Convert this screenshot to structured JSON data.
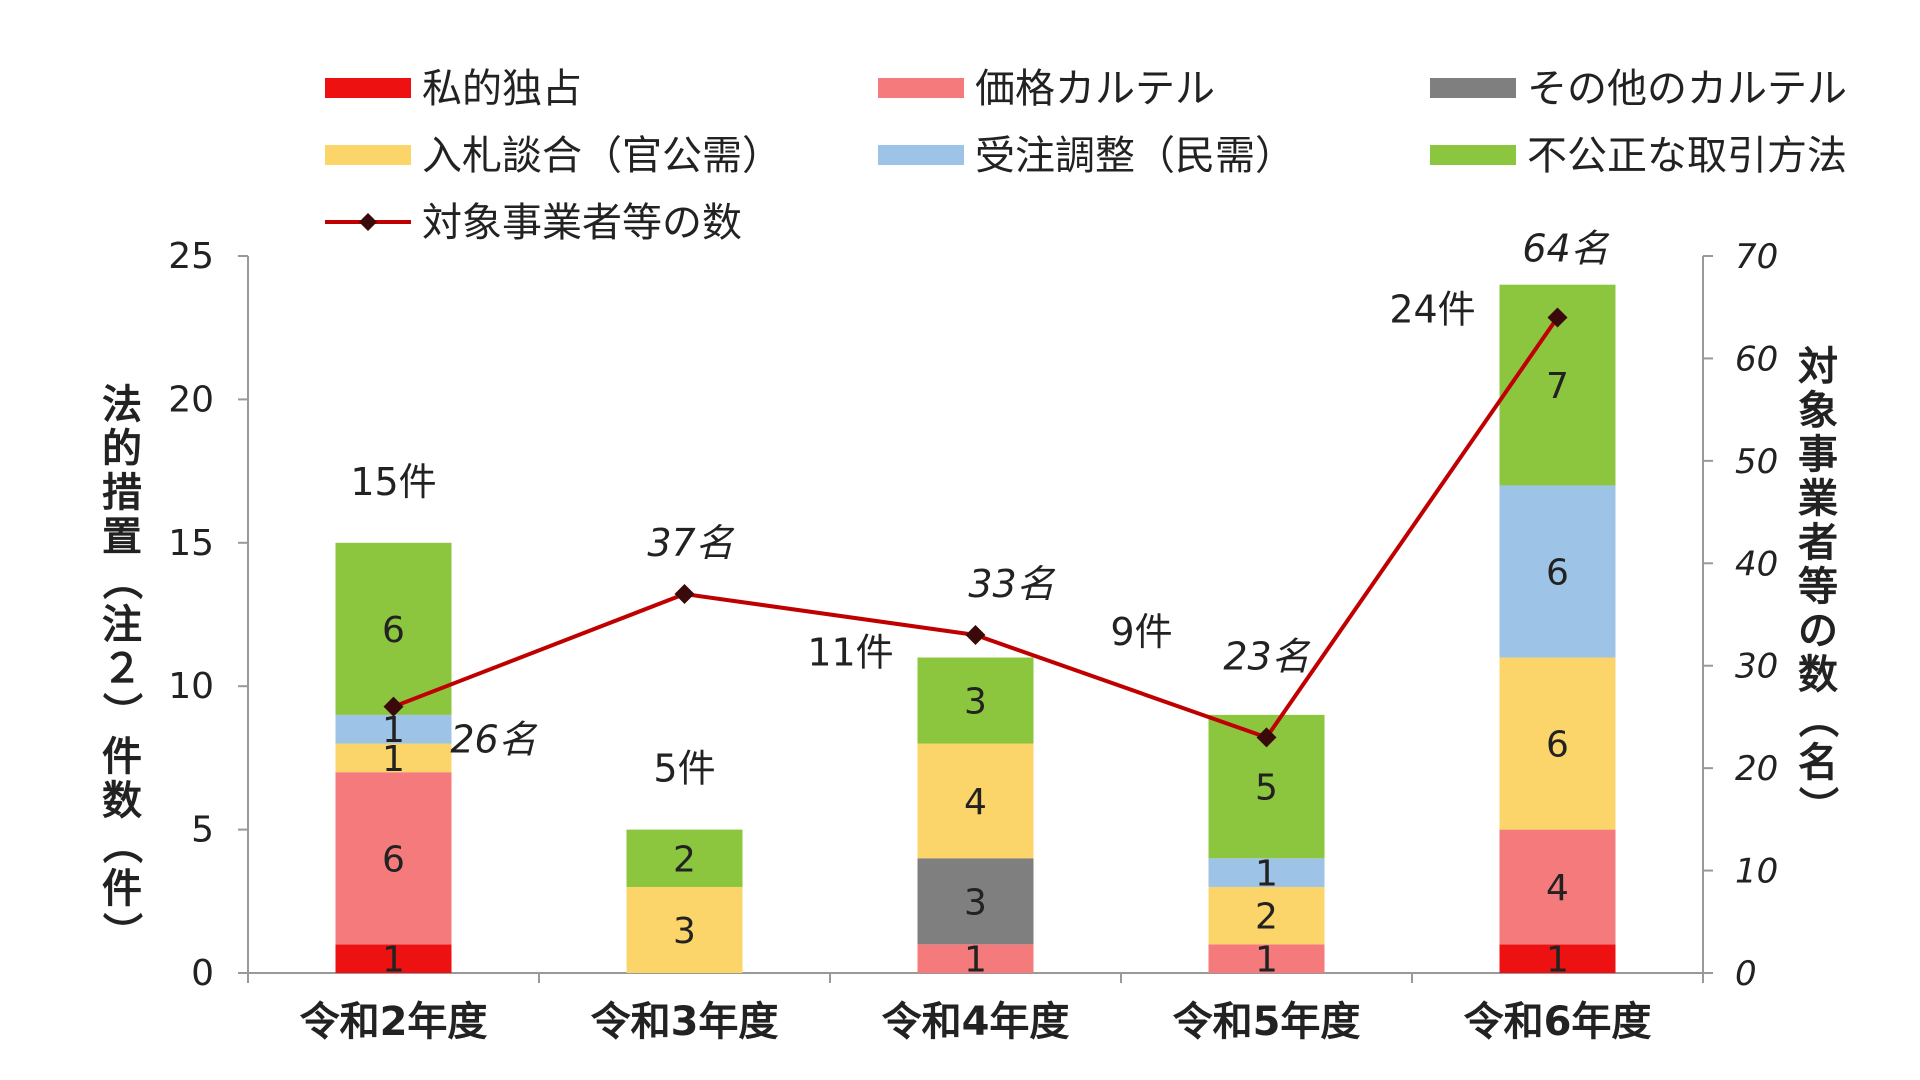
{
  "chart_data": {
    "type": "bar",
    "stacked": true,
    "categories": [
      "令和2年度",
      "令和3年度",
      "令和4年度",
      "令和5年度",
      "令和6年度"
    ],
    "series": [
      {
        "name": "私的独占",
        "color": "#ee1111",
        "values": [
          1,
          0,
          0,
          0,
          1
        ],
        "labels": [
          "1",
          "",
          "",
          "",
          "1"
        ]
      },
      {
        "name": "価格カルテル",
        "color": "#f47a7c",
        "values": [
          6,
          0,
          1,
          1,
          4
        ],
        "labels": [
          "6",
          "",
          "1",
          "1",
          "4"
        ]
      },
      {
        "name": "その他のカルテル",
        "color": "#7f7f7f",
        "values": [
          0,
          0,
          3,
          0,
          0
        ],
        "labels": [
          "",
          "",
          "3",
          "",
          ""
        ]
      },
      {
        "name": "入札談合（官公需）",
        "color": "#fbd56a",
        "values": [
          1,
          3,
          4,
          2,
          6
        ],
        "labels": [
          "1",
          "3",
          "4",
          "2",
          "6"
        ]
      },
      {
        "name": "受注調整（民需）",
        "color": "#9dc3e6",
        "values": [
          1,
          0,
          0,
          1,
          6
        ],
        "labels": [
          "1",
          "",
          "",
          "1",
          "6"
        ]
      },
      {
        "name": "不公正な取引方法",
        "color": "#8cc63f",
        "values": [
          6,
          2,
          3,
          5,
          7
        ],
        "labels": [
          "6",
          "2",
          "3",
          "5",
          "7"
        ]
      }
    ],
    "totals_labels": [
      "15件",
      "5件",
      "11件",
      "9件",
      "24件"
    ],
    "line_series": {
      "name": "対象事業者等の数",
      "color": "#c00000",
      "values": [
        26,
        37,
        33,
        23,
        64
      ],
      "labels": [
        "26名",
        "37名",
        "33名",
        "23名",
        "64名"
      ]
    },
    "ylabel_left": "法的措置（注２）件数（件）",
    "ylabel_right": "対象事業者等の数（名）",
    "ylim_left": [
      0,
      25
    ],
    "yticks_left": [
      "0",
      "5",
      "10",
      "15",
      "20",
      "25"
    ],
    "ylim_right": [
      0,
      70
    ],
    "yticks_right": [
      "0",
      "10",
      "20",
      "30",
      "40",
      "50",
      "60",
      "70"
    ],
    "legend_position": "top"
  }
}
